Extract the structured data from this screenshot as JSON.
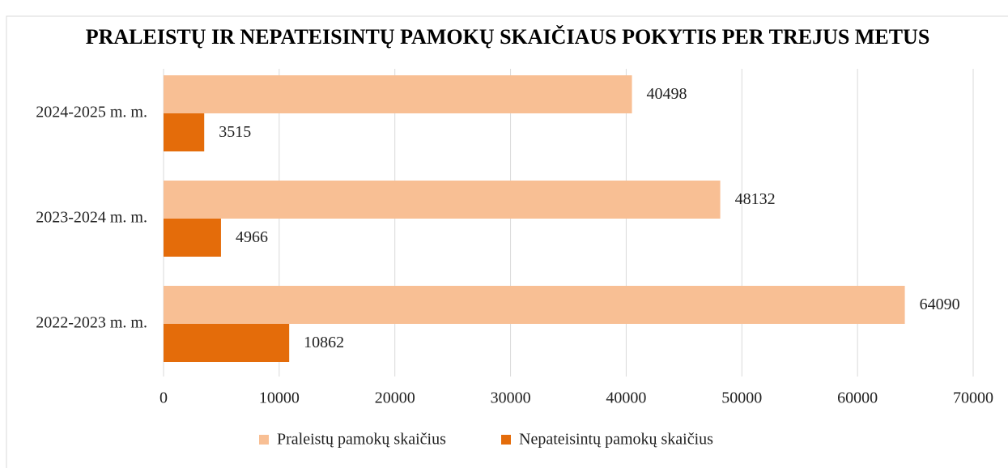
{
  "chart_data": {
    "type": "bar",
    "orientation": "horizontal",
    "title": "PRALEISTŲ IR NEPATEISINTŲ PAMOKŲ SKAIČIAUS POKYTIS PER TREJUS METUS",
    "categories": [
      "2022-2023 m. m.",
      "2023-2024 m. m.",
      "2024-2025 m. m."
    ],
    "series": [
      {
        "name": "Praleistų pamokų skaičius",
        "color": "#f8bf94",
        "values": [
          64090,
          48132,
          40498
        ]
      },
      {
        "name": "Nepateisintų pamokų skaičius",
        "color": "#e46c0a",
        "values": [
          10862,
          4966,
          3515
        ]
      }
    ],
    "xlim": [
      0,
      70000
    ],
    "xticks": [
      0,
      10000,
      20000,
      30000,
      40000,
      50000,
      60000,
      70000
    ],
    "grid": true,
    "legend": "bottom"
  }
}
